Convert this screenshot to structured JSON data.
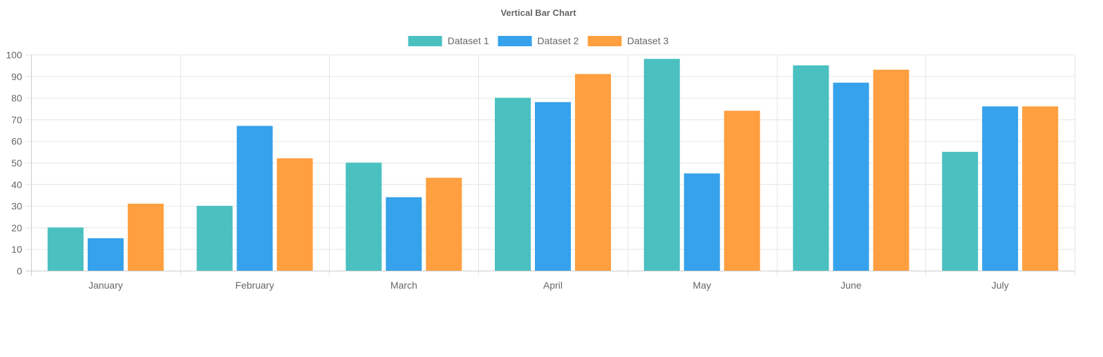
{
  "chart_data": {
    "type": "bar",
    "title": "Vertical Bar Chart",
    "categories": [
      "January",
      "February",
      "March",
      "April",
      "May",
      "June",
      "July"
    ],
    "series": [
      {
        "name": "Dataset 1",
        "color": "#4BC0C0",
        "values": [
          20,
          30,
          50,
          80,
          98,
          95,
          55
        ]
      },
      {
        "name": "Dataset 2",
        "color": "#36A2EB",
        "values": [
          15,
          67,
          34,
          78,
          45,
          87,
          76
        ]
      },
      {
        "name": "Dataset 3",
        "color": "#FF9F40",
        "values": [
          31,
          52,
          43,
          91,
          74,
          93,
          76
        ]
      }
    ],
    "xlabel": "",
    "ylabel": "",
    "ylim": [
      0,
      100
    ],
    "yticks": [
      0,
      10,
      20,
      30,
      40,
      50,
      60,
      70,
      80,
      90,
      100
    ],
    "grid": true,
    "legend_position": "top-center"
  }
}
